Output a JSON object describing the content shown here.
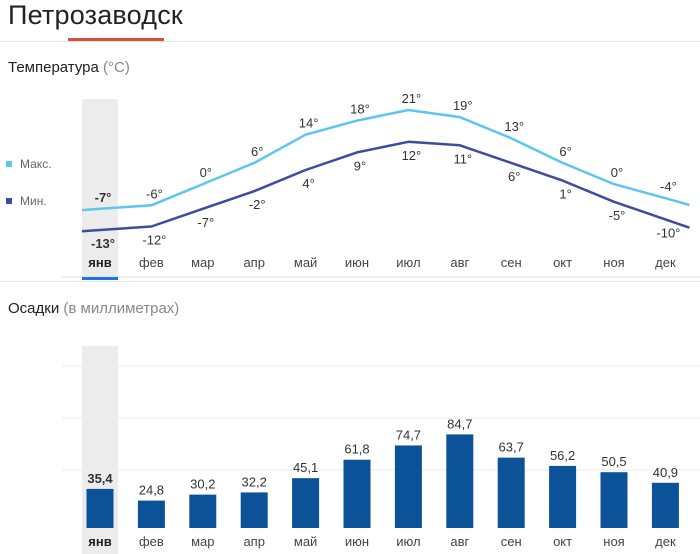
{
  "page": {
    "city": "Петрозаводск"
  },
  "temperature": {
    "title": "Температура",
    "unit": "(°C)",
    "legend": [
      {
        "label": "Макс.",
        "color": "#5bc6ee"
      },
      {
        "label": "Мин.",
        "color": "#3f4b9c"
      }
    ]
  },
  "precipitation": {
    "title": "Осадки",
    "unit": "(в миллиметрах)"
  },
  "months": [
    "янв",
    "фев",
    "мар",
    "апр",
    "май",
    "июн",
    "июл",
    "авг",
    "сен",
    "окт",
    "ноя",
    "дек"
  ],
  "selected_month_index": 0,
  "colors": {
    "max_line": "#5bc6ee",
    "min_line": "#3f4b9c",
    "bar": "#0c5299",
    "accent": "#dd4b39",
    "selected_tab": "#1a73e8",
    "selected_bg": "#ececec"
  },
  "chart_data": [
    {
      "type": "line",
      "title": "Температура",
      "categories": [
        "янв",
        "фев",
        "мар",
        "апр",
        "май",
        "июн",
        "июл",
        "авг",
        "сен",
        "окт",
        "ноя",
        "дек"
      ],
      "series": [
        {
          "name": "Макс.",
          "values": [
            -7,
            -6,
            0,
            6,
            14,
            18,
            21,
            19,
            13,
            6,
            0,
            -4
          ],
          "labels": [
            "-7°",
            "-6°",
            "0°",
            "6°",
            "14°",
            "18°",
            "21°",
            "19°",
            "13°",
            "6°",
            "0°",
            "-4°"
          ]
        },
        {
          "name": "Мин.",
          "values": [
            -13,
            -12,
            -7,
            -2,
            4,
            9,
            12,
            11,
            6,
            1,
            -5,
            -10
          ],
          "labels": [
            "-13°",
            "-12°",
            "-7°",
            "-2°",
            "4°",
            "9°",
            "12°",
            "11°",
            "6°",
            "1°",
            "-5°",
            "-10°"
          ]
        }
      ],
      "grid": false
    },
    {
      "type": "bar",
      "title": "Осадки",
      "categories": [
        "янв",
        "фев",
        "мар",
        "апр",
        "май",
        "июн",
        "июл",
        "авг",
        "сен",
        "окт",
        "ноя",
        "дек"
      ],
      "values": [
        35.4,
        24.8,
        30.2,
        32.2,
        45.1,
        61.8,
        74.7,
        84.7,
        63.7,
        56.2,
        50.5,
        40.9
      ],
      "labels": [
        "35,4",
        "24,8",
        "30,2",
        "32,2",
        "45,1",
        "61,8",
        "74,7",
        "84,7",
        "63,7",
        "56,2",
        "50,5",
        "40,9"
      ],
      "grid": true
    }
  ]
}
